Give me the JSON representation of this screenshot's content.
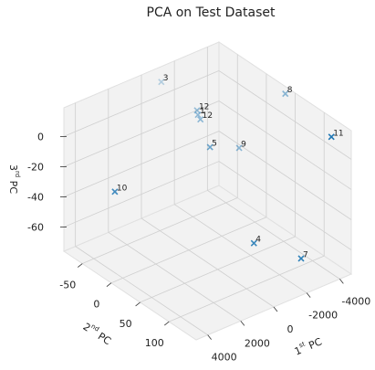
{
  "chart_data": {
    "type": "scatter3d",
    "title": "PCA on Test Dataset",
    "xlabel": [
      "1",
      "st",
      " PC"
    ],
    "ylabel": [
      "2",
      "nd",
      " PC"
    ],
    "zlabel": [
      "3",
      "rd",
      " PC"
    ],
    "series": [
      {
        "color": "#1f77b4",
        "marker": "x",
        "labels": [
          "3",
          "12",
          "1",
          "12",
          "5",
          "9",
          "8",
          "11",
          "10",
          "4",
          "7"
        ],
        "x": [
          -1100,
          -1690,
          -1640,
          -1650,
          -1390,
          -2840,
          -4380,
          -3950,
          2520,
          -1880,
          -3200
        ],
        "y": [
          -79,
          -34,
          -31,
          -27,
          -3,
          6,
          42,
          134,
          -56,
          59,
          103
        ],
        "z": [
          10,
          0,
          -2,
          -4,
          -15,
          -20,
          18,
          15,
          -40,
          -65,
          -70
        ]
      }
    ],
    "depthshade": true,
    "xlim": [
      -4700,
      4700
    ],
    "ylim": [
      -82,
      147
    ],
    "zlim": [
      -76,
      19
    ],
    "xticks": [
      -4000,
      -2000,
      0,
      2000,
      4000
    ],
    "yticks": [
      -50,
      0,
      50,
      100
    ],
    "zticks": [
      -60,
      -40,
      -20,
      0
    ],
    "grid": true
  }
}
